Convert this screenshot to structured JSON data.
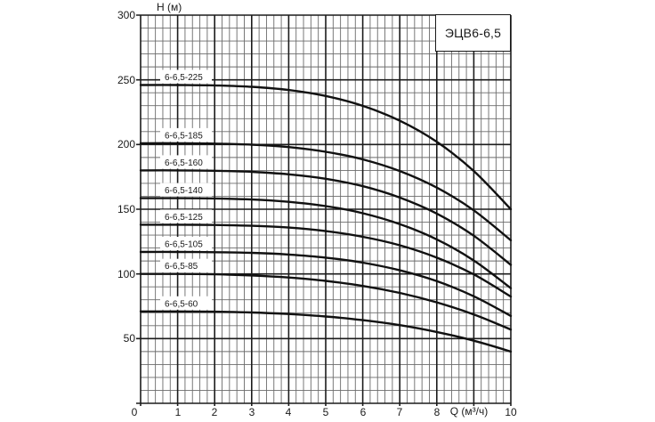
{
  "figure": {
    "title_box": "ЭЦВ6-6,5",
    "y_axis_label": "H (м)",
    "x_axis_label": "Q (м³/ч)"
  },
  "colors": {
    "background": "#ffffff",
    "curve": "#111111",
    "grid_major": "#1c1c1c",
    "grid_minor": "#6b6b6b",
    "text": "#1a1a1a"
  },
  "chart_data": {
    "type": "line",
    "title": "ЭЦВ6-6,5",
    "xlabel": "Q (м³/ч)",
    "ylabel": "H (м)",
    "xlim": [
      0,
      10
    ],
    "ylim": [
      0,
      300
    ],
    "x_ticks": [
      0,
      1,
      2,
      3,
      4,
      5,
      6,
      7,
      8,
      10
    ],
    "x_axis_label_at": 9,
    "y_ticks": [
      300,
      250,
      200,
      150,
      100,
      50
    ],
    "grid": "major and minor, minor x step 0.2, minor y step 10",
    "legend_position": "labels above left end of each curve",
    "x": [
      0,
      1,
      2,
      3,
      4,
      5,
      6,
      7,
      8,
      9,
      10
    ],
    "series": [
      {
        "name": "6-6,5-225",
        "values": [
          246,
          246,
          245.7,
          244.6,
          242.1,
          237.5,
          229.9,
          218.4,
          202.1,
          179.5,
          150
        ]
      },
      {
        "name": "6-6,5-185",
        "values": [
          201,
          201,
          200.7,
          199.9,
          198,
          194.4,
          188.5,
          179.5,
          166.7,
          149.1,
          126
        ]
      },
      {
        "name": "6-6,5-160",
        "values": [
          180,
          180,
          179.7,
          178.9,
          177,
          173.5,
          167.8,
          159,
          146.6,
          129.5,
          107
        ]
      },
      {
        "name": "6-6,5-140",
        "values": [
          158.5,
          158.5,
          158.3,
          157.5,
          155.7,
          152.4,
          146.9,
          138.5,
          126.7,
          110.4,
          89
        ]
      },
      {
        "name": "6-6,5-125",
        "values": [
          138,
          138,
          137.8,
          137.2,
          135.8,
          133.1,
          128.7,
          122.1,
          112.6,
          99.6,
          82.5
        ]
      },
      {
        "name": "6-6,5-105",
        "values": [
          117,
          117,
          116.8,
          116.3,
          115,
          112.6,
          108.7,
          102.8,
          94.4,
          82.7,
          67.5
        ]
      },
      {
        "name": "6-6,5-85",
        "values": [
          100,
          100,
          99.7,
          98.8,
          97.2,
          94.6,
          90.7,
          85.3,
          78,
          68.7,
          57
        ]
      },
      {
        "name": "6-6,5-60",
        "values": [
          71,
          71,
          70.8,
          70.2,
          69,
          67.1,
          64.3,
          60.4,
          55.1,
          48.4,
          40
        ]
      }
    ]
  }
}
